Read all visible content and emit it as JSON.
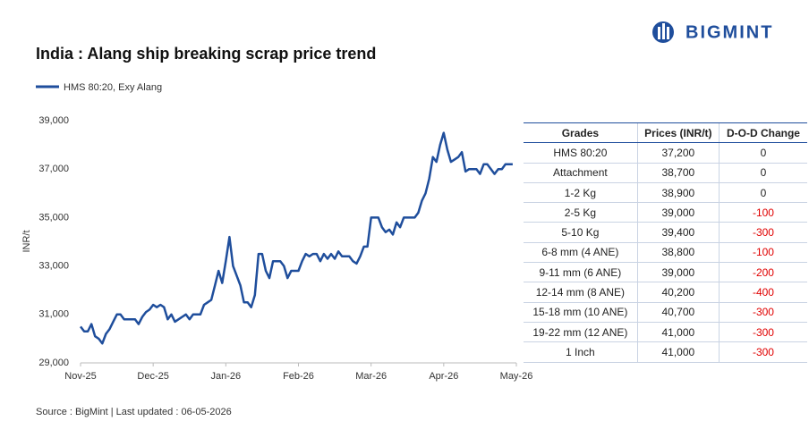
{
  "logo": "BIGMINT",
  "chart_data": {
    "type": "line",
    "title": "India : Alang ship breaking scrap price trend",
    "y_label": "INR/t",
    "source": "Source : BigMint | Last updated : 06-05-2026",
    "categories": [
      "Nov-25",
      null,
      null,
      null,
      null,
      null,
      null,
      null,
      null,
      null,
      null,
      null,
      null,
      null,
      null,
      null,
      null,
      null,
      null,
      null,
      "Dec-25",
      null,
      null,
      null,
      null,
      null,
      null,
      null,
      null,
      null,
      null,
      null,
      null,
      null,
      null,
      null,
      null,
      null,
      null,
      null,
      "Jan-26",
      null,
      null,
      null,
      null,
      null,
      null,
      null,
      null,
      null,
      null,
      null,
      null,
      null,
      null,
      null,
      null,
      null,
      null,
      null,
      "Feb-26",
      null,
      null,
      null,
      null,
      null,
      null,
      null,
      null,
      null,
      null,
      null,
      null,
      null,
      null,
      null,
      null,
      null,
      null,
      null,
      "Mar-26",
      null,
      null,
      null,
      null,
      null,
      null,
      null,
      null,
      null,
      null,
      null,
      null,
      null,
      null,
      null,
      null,
      null,
      null,
      null,
      "Apr-26",
      null,
      null,
      null,
      null,
      null,
      null,
      null,
      null,
      null,
      null,
      null,
      null,
      null,
      null,
      null,
      null,
      null,
      null,
      null,
      "May-26"
    ],
    "series": [
      {
        "name": "HMS 80:20, Exy Alang",
        "color": "#1f4e9c",
        "values": [
          30500,
          30300,
          30300,
          30600,
          30100,
          30000,
          29800,
          30200,
          30400,
          30700,
          31000,
          31000,
          30800,
          30800,
          30800,
          30800,
          30600,
          30900,
          31100,
          31200,
          31400,
          31300,
          31400,
          31300,
          30800,
          31000,
          30700,
          30800,
          30900,
          31000,
          30800,
          31000,
          31000,
          31000,
          31400,
          31500,
          31600,
          32200,
          32800,
          32300,
          33200,
          34200,
          33000,
          32600,
          32200,
          31500,
          31500,
          31300,
          31800,
          33500,
          33500,
          32800,
          32500,
          33200,
          33200,
          33200,
          33000,
          32500,
          32800,
          32800,
          32800,
          33200,
          33500,
          33400,
          33500,
          33500,
          33200,
          33500,
          33300,
          33500,
          33300,
          33600,
          33400,
          33400,
          33400,
          33200,
          33100,
          33400,
          33800,
          33800,
          35000,
          35000,
          35000,
          34600,
          34400,
          34500,
          34300,
          34800,
          34600,
          35000,
          35000,
          35000,
          35000,
          35200,
          35700,
          36000,
          36600,
          37500,
          37300,
          38000,
          38500,
          37800,
          37300,
          37400,
          37500,
          37700,
          36900,
          37000,
          37000,
          37000,
          36800,
          37200,
          37200,
          37000,
          36800,
          37000,
          37000,
          37200,
          37200,
          37200,
          null
        ]
      }
    ],
    "ylim": [
      29000,
      39000
    ],
    "yticks": [
      {
        "value": 29000,
        "label": "29,000"
      },
      {
        "value": 31000,
        "label": "31,000"
      },
      {
        "value": 33000,
        "label": "33,000"
      },
      {
        "value": 35000,
        "label": "35,000"
      },
      {
        "value": 37000,
        "label": "37,000"
      },
      {
        "value": 39000,
        "label": "39,000"
      }
    ],
    "grid": false
  },
  "table": {
    "header": [
      "Grades",
      "Prices (INR/t)",
      "D-O-D Change"
    ],
    "rows": [
      [
        "HMS 80:20",
        "37,200",
        "0"
      ],
      [
        "Attachment",
        "38,700",
        "0"
      ],
      [
        "1-2 Kg",
        "38,900",
        "0"
      ],
      [
        "2-5 Kg",
        "39,000",
        "-100"
      ],
      [
        "5-10 Kg",
        "39,400",
        "-300"
      ],
      [
        "6-8 mm (4 ANE)",
        "38,800",
        "-100"
      ],
      [
        "9-11 mm (6 ANE)",
        "39,000",
        "-200"
      ],
      [
        "12-14 mm (8 ANE)",
        "40,200",
        "-400"
      ],
      [
        "15-18 mm (10 ANE)",
        "40,700",
        "-300"
      ],
      [
        "19-22 mm (12 ANE)",
        "41,000",
        "-300"
      ],
      [
        "1 Inch",
        "41,000",
        "-300"
      ]
    ]
  }
}
